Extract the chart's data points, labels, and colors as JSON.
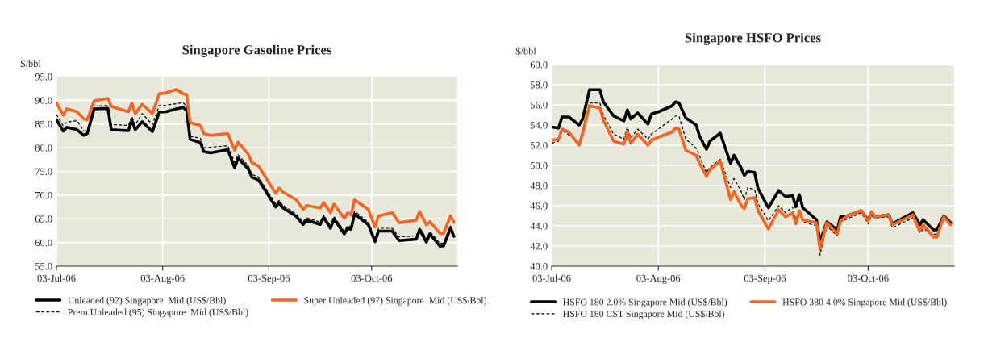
{
  "chart_data": [
    {
      "type": "line",
      "title": "Singapore Gasoline Prices",
      "ylabel": "$/bbl",
      "grid": true,
      "legend": "bottom",
      "x": [
        "2006-07-03",
        "2006-07-05",
        "2006-07-06",
        "2006-07-09",
        "2006-07-11",
        "2006-07-12",
        "2006-07-14",
        "2006-07-18",
        "2006-07-19",
        "2006-07-24",
        "2006-07-25",
        "2006-07-26",
        "2006-07-28",
        "2006-07-31",
        "2006-08-02",
        "2006-08-04",
        "2006-08-07",
        "2006-08-09",
        "2006-08-10",
        "2006-08-11",
        "2006-08-14",
        "2006-08-15",
        "2006-08-17",
        "2006-08-22",
        "2006-08-24",
        "2006-08-25",
        "2006-08-28",
        "2006-08-29",
        "2006-08-31",
        "2006-09-05",
        "2006-09-06",
        "2006-09-07",
        "2006-09-11",
        "2006-09-13",
        "2006-09-14",
        "2006-09-18",
        "2006-09-19",
        "2006-09-21",
        "2006-09-22",
        "2006-09-25",
        "2006-09-26",
        "2006-09-27",
        "2006-09-28",
        "2006-10-02",
        "2006-10-04",
        "2006-10-05",
        "2006-10-09",
        "2006-10-11",
        "2006-10-16",
        "2006-10-17",
        "2006-10-19",
        "2006-10-20",
        "2006-10-23",
        "2006-10-24",
        "2006-10-26",
        "2006-10-27"
      ],
      "series": [
        {
          "name": "Unleaded (92) Singapore  Mid (US$/Bbl)",
          "color": "#000000",
          "line_style": "solid",
          "values": [
            85.9,
            83.5,
            84.3,
            83.8,
            82.6,
            83.0,
            88.2,
            88.3,
            83.8,
            83.6,
            85.8,
            83.8,
            85.5,
            83.4,
            87.5,
            87.6,
            88.2,
            88.5,
            87.8,
            81.8,
            81.1,
            79.2,
            78.9,
            79.6,
            75.8,
            77.8,
            75.5,
            73.8,
            73.2,
            67.5,
            68.4,
            67.4,
            65.5,
            63.8,
            64.7,
            63.8,
            65.3,
            63.0,
            65.0,
            61.8,
            63.0,
            62.8,
            66.0,
            63.8,
            60.2,
            62.4,
            62.4,
            60.4,
            60.7,
            62.7,
            60.1,
            61.8,
            59.2,
            59.3,
            63.0,
            61.3
          ]
        },
        {
          "name": "Prem Unleaded (95) Singapore  Mid (US$/Bbl)",
          "color": "#000000",
          "line_style": "dashed",
          "values": [
            87.0,
            84.6,
            85.4,
            85.7,
            83.5,
            83.6,
            88.8,
            88.9,
            84.9,
            84.7,
            86.6,
            84.8,
            87.2,
            84.9,
            88.9,
            89.0,
            89.3,
            89.5,
            88.6,
            82.4,
            82.0,
            80.0,
            80.1,
            80.4,
            76.9,
            78.5,
            76.2,
            74.4,
            73.8,
            68.2,
            68.9,
            67.9,
            66.0,
            64.4,
            65.2,
            64.3,
            65.8,
            63.5,
            65.5,
            62.4,
            63.5,
            63.4,
            66.6,
            64.3,
            60.9,
            63.0,
            63.0,
            61.2,
            61.4,
            63.2,
            60.8,
            62.3,
            59.8,
            59.9,
            63.5,
            62.0
          ]
        },
        {
          "name": "Super Unleaded (97) Singapore  Mid (US$/Bbl)",
          "color": "#f26522",
          "line_style": "solid",
          "values": [
            89.5,
            86.9,
            88.2,
            87.6,
            86.1,
            85.9,
            89.9,
            90.4,
            88.7,
            87.6,
            89.4,
            87.2,
            89.2,
            87.2,
            91.4,
            91.6,
            92.3,
            91.4,
            91.2,
            85.3,
            84.7,
            83.0,
            82.6,
            83.0,
            79.5,
            81.2,
            78.6,
            76.9,
            76.1,
            70.4,
            71.5,
            70.7,
            69.0,
            67.0,
            67.8,
            67.3,
            68.4,
            66.3,
            68.1,
            65.1,
            66.3,
            65.8,
            69.0,
            67.0,
            63.3,
            65.6,
            66.3,
            64.2,
            64.7,
            66.5,
            63.7,
            64.4,
            61.9,
            61.9,
            65.6,
            64.3
          ]
        }
      ],
      "xlim": [
        "2006-07-03",
        "2006-10-28"
      ],
      "xticks": [
        {
          "value": "2006-07-03",
          "label": "03-Jul-06"
        },
        {
          "value": "2006-08-03",
          "label": "03-Aug-06"
        },
        {
          "value": "2006-09-03",
          "label": "03-Sep-06"
        },
        {
          "value": "2006-10-03",
          "label": "03-Oct-06"
        }
      ],
      "ylim": [
        55,
        95
      ],
      "yticks": [
        {
          "value": 55,
          "label": "55.0"
        },
        {
          "value": 60,
          "label": "60.0"
        },
        {
          "value": 65,
          "label": "65.0"
        },
        {
          "value": 70,
          "label": "70.0"
        },
        {
          "value": 75,
          "label": "75.0"
        },
        {
          "value": 80,
          "label": "80.0"
        },
        {
          "value": 85,
          "label": "85.0"
        },
        {
          "value": 90,
          "label": "90.0"
        },
        {
          "value": 95,
          "label": "95.0"
        }
      ]
    },
    {
      "type": "line",
      "title": "Singapore HSFO Prices",
      "ylabel": "$/bbl",
      "grid": true,
      "legend": "bottom",
      "x": [
        "2006-07-03",
        "2006-07-05",
        "2006-07-06",
        "2006-07-08",
        "2006-07-11",
        "2006-07-12",
        "2006-07-14",
        "2006-07-17",
        "2006-07-18",
        "2006-07-21",
        "2006-07-24",
        "2006-07-25",
        "2006-07-26",
        "2006-07-28",
        "2006-07-31",
        "2006-08-01",
        "2006-08-03",
        "2006-08-07",
        "2006-08-08",
        "2006-08-09",
        "2006-08-11",
        "2006-08-14",
        "2006-08-15",
        "2006-08-17",
        "2006-08-18",
        "2006-08-21",
        "2006-08-24",
        "2006-08-25",
        "2006-08-27",
        "2006-08-28",
        "2006-08-29",
        "2006-08-31",
        "2006-09-01",
        "2006-09-04",
        "2006-09-07",
        "2006-09-09",
        "2006-09-11",
        "2006-09-12",
        "2006-09-13",
        "2006-09-14",
        "2006-09-18",
        "2006-09-19",
        "2006-09-21",
        "2006-09-24",
        "2006-09-25",
        "2006-09-27",
        "2006-10-01",
        "2006-10-03",
        "2006-10-04",
        "2006-10-05",
        "2006-10-09",
        "2006-10-10",
        "2006-10-16",
        "2006-10-18",
        "2006-10-19",
        "2006-10-22",
        "2006-10-23",
        "2006-10-25",
        "2006-10-27"
      ],
      "series": [
        {
          "name": "HSFO 180 2.0% Singapore Mid (US$/Bbl)",
          "color": "#000000",
          "line_style": "solid",
          "values": [
            53.8,
            53.7,
            54.8,
            54.8,
            54.0,
            54.6,
            57.5,
            57.5,
            56.3,
            54.9,
            54.4,
            55.5,
            54.6,
            55.2,
            54.1,
            55.1,
            55.3,
            55.9,
            56.3,
            56.2,
            54.7,
            54.0,
            52.9,
            51.6,
            52.4,
            53.2,
            50.2,
            51.0,
            49.8,
            49.0,
            49.4,
            49.3,
            47.7,
            45.8,
            47.5,
            46.9,
            47.0,
            45.9,
            47.1,
            45.8,
            44.6,
            42.4,
            44.4,
            43.6,
            44.9,
            45.0,
            45.5,
            44.6,
            45.3,
            44.9,
            45.1,
            44.2,
            45.3,
            44.1,
            44.6,
            43.6,
            43.6,
            45.0,
            44.3
          ]
        },
        {
          "name": "HSFO 180 CST Singapore Mid (US$/Bbl)",
          "color": "#000000",
          "line_style": "dashed",
          "values": [
            52.2,
            52.4,
            53.5,
            null,
            52.3,
            53.6,
            56.2,
            56.2,
            55.0,
            53.1,
            52.6,
            53.8,
            52.7,
            53.6,
            52.6,
            53.1,
            53.6,
            54.6,
            54.9,
            54.9,
            52.6,
            51.7,
            50.9,
            49.3,
            49.8,
            50.6,
            47.8,
            48.7,
            47.5,
            46.6,
            47.8,
            47.6,
            46.2,
            44.5,
            46.0,
            45.3,
            45.9,
            44.6,
            45.4,
            44.4,
            44.0,
            41.1,
            44.0,
            43.0,
            44.4,
            44.7,
            45.3,
            44.2,
            45.0,
            44.8,
            44.9,
            43.8,
            44.8,
            43.3,
            43.7,
            43.2,
            43.1,
            44.9,
            44.1
          ]
        },
        {
          "name": "HSFO 380 4.0% Singapore Mid (US$/Bbl)",
          "color": "#f26522",
          "line_style": "solid",
          "values": [
            52.5,
            52.6,
            53.6,
            53.3,
            52.0,
            53.2,
            55.9,
            55.7,
            54.5,
            52.4,
            52.1,
            53.3,
            52.2,
            53.1,
            52.0,
            52.5,
            52.8,
            53.3,
            53.7,
            53.6,
            51.5,
            51.0,
            50.2,
            48.9,
            49.6,
            50.4,
            46.6,
            47.4,
            46.1,
            45.7,
            46.7,
            46.8,
            45.5,
            43.7,
            45.6,
            44.9,
            45.3,
            44.2,
            45.5,
            44.6,
            44.3,
            41.7,
            44.3,
            43.2,
            44.5,
            45.0,
            45.5,
            44.5,
            45.4,
            44.9,
            45.1,
            44.1,
            45.1,
            43.5,
            44.1,
            42.9,
            42.9,
            44.9,
            44.1
          ]
        }
      ],
      "xlim": [
        "2006-07-03",
        "2006-10-28"
      ],
      "xticks": [
        {
          "value": "2006-07-03",
          "label": "03-Jul-06"
        },
        {
          "value": "2006-08-03",
          "label": "03-Aug-06"
        },
        {
          "value": "2006-09-03",
          "label": "03-Sep-06"
        },
        {
          "value": "2006-10-03",
          "label": "03-Oct-06"
        }
      ],
      "ylim": [
        40,
        60
      ],
      "yticks": [
        {
          "value": 40,
          "label": "40.0"
        },
        {
          "value": 42,
          "label": "42.0"
        },
        {
          "value": 44,
          "label": "44.0"
        },
        {
          "value": 46,
          "label": "46.0"
        },
        {
          "value": 48,
          "label": "48.0"
        },
        {
          "value": 50,
          "label": "50.0"
        },
        {
          "value": 52,
          "label": "52.0"
        },
        {
          "value": 54,
          "label": "54.0"
        },
        {
          "value": 56,
          "label": "56.0"
        },
        {
          "value": 58,
          "label": "58.0"
        },
        {
          "value": 60,
          "label": "60.0"
        }
      ]
    }
  ]
}
